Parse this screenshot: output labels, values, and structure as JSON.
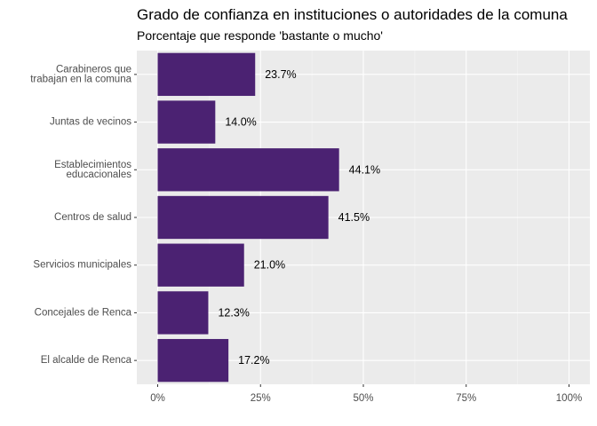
{
  "chart_data": {
    "type": "bar",
    "orientation": "horizontal",
    "title": "Grado de confianza en instituciones o autoridades de la comuna",
    "subtitle": "Porcentaje que responde 'bastante o mucho'",
    "xlabel": "",
    "ylabel": "",
    "categories": [
      [
        "Carabineros que",
        "trabajan en la comuna"
      ],
      [
        "Juntas de vecinos"
      ],
      [
        "Establecimientos",
        "educacionales"
      ],
      [
        "Centros de salud"
      ],
      [
        "Servicios municipales"
      ],
      [
        "Concejales de Renca"
      ],
      [
        "El alcalde de Renca"
      ]
    ],
    "values": [
      23.7,
      14.0,
      44.1,
      41.5,
      21.0,
      12.3,
      17.2
    ],
    "data_labels": [
      "23.7%",
      "14.0%",
      "44.1%",
      "41.5%",
      "21.0%",
      "12.3%",
      "17.2%"
    ],
    "xlim": [
      0,
      100
    ],
    "xticks": [
      0,
      25,
      50,
      75,
      100
    ],
    "xtick_labels": [
      "0%",
      "25%",
      "50%",
      "75%",
      "100%"
    ],
    "grid": true,
    "legend": "none",
    "colors": {
      "bar": "#4B2272",
      "panel": "#EBEBEB",
      "grid_major": "#FFFFFF",
      "grid_minor": "#F5F5F5"
    }
  }
}
